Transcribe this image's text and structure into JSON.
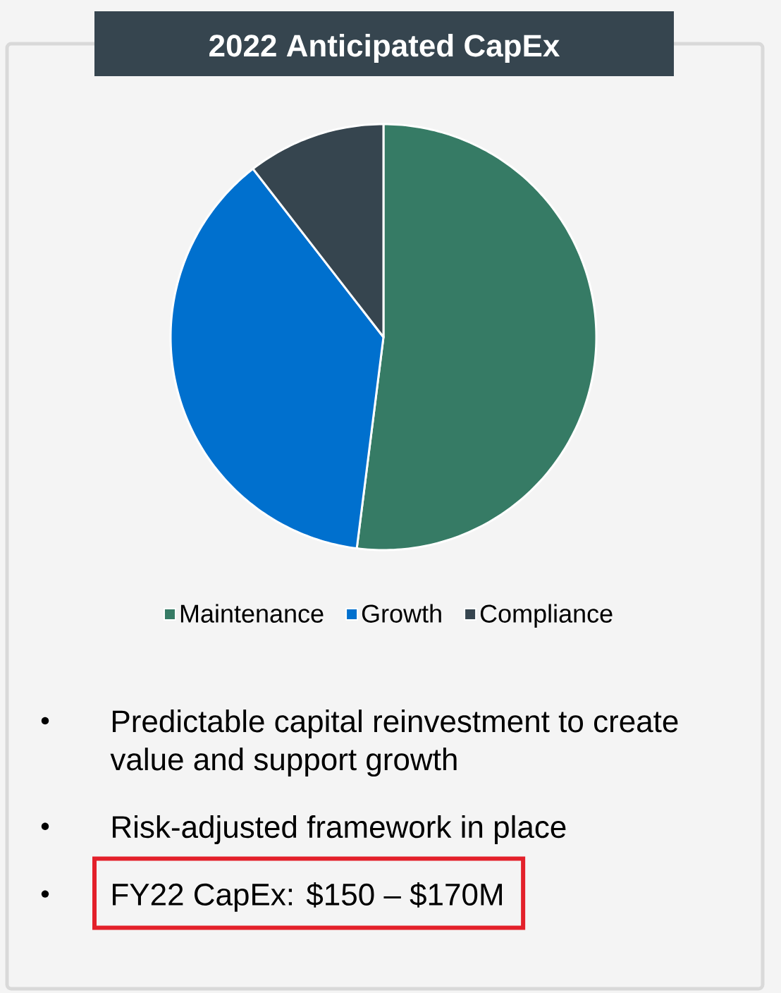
{
  "chart_data": {
    "type": "pie",
    "title": "2022 Anticipated CapEx",
    "categories": [
      "Maintenance",
      "Growth",
      "Compliance"
    ],
    "values": [
      52,
      37.5,
      10.5
    ],
    "colors": [
      "#367b65",
      "#0070ce",
      "#36454f"
    ],
    "legend": "bottom",
    "annotations": [
      "Predictable capital reinvestment to create value and support growth",
      "Risk-adjusted framework in place",
      "FY22 CapEx: $150 – $170M"
    ]
  }
}
